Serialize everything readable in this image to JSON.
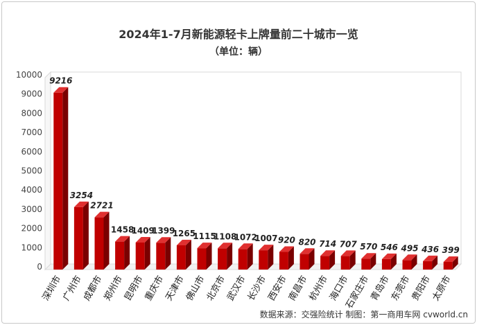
{
  "chart_data": {
    "type": "bar",
    "title": "2024年1-7月新能源轻卡上牌量前二十城市一览",
    "subtitle": "（单位：辆）",
    "categories": [
      "深圳市",
      "广州市",
      "成都市",
      "郑州市",
      "昆明市",
      "重庆市",
      "天津市",
      "佛山市",
      "北京市",
      "武汉市",
      "长沙市",
      "西安市",
      "南昌市",
      "杭州市",
      "海口市",
      "石家庄市",
      "青岛市",
      "东莞市",
      "贵阳市",
      "太原市"
    ],
    "values": [
      9216,
      3254,
      2721,
      1458,
      1409,
      1399,
      1265,
      1115,
      1108,
      1072,
      1007,
      920,
      820,
      714,
      707,
      570,
      546,
      495,
      436,
      399
    ],
    "data_labels": [
      "9216",
      "3254",
      "2721",
      "1458",
      "1409",
      "1399",
      "1265",
      "1115",
      "1108",
      "1072",
      "1007",
      "920",
      "820",
      "714",
      "707",
      "570",
      "546",
      "495",
      "436",
      "399"
    ],
    "italic_labels": [
      0,
      1,
      2,
      11,
      12,
      13,
      14,
      15,
      16,
      17,
      18,
      19
    ],
    "yticks": [
      "0",
      "1000",
      "2000",
      "3000",
      "4000",
      "5000",
      "6000",
      "7000",
      "8000",
      "9000",
      "10000"
    ],
    "ylim": [
      0,
      10000
    ],
    "xlabel": "",
    "ylabel": "",
    "grid": false,
    "legend": "none",
    "bar_color": "#c00000",
    "bar_dark": "#7a0000",
    "bar_light": "#e03030"
  },
  "source_note": "数据来源：交强险统计  制图：第一商用车网 cvworld.cn"
}
